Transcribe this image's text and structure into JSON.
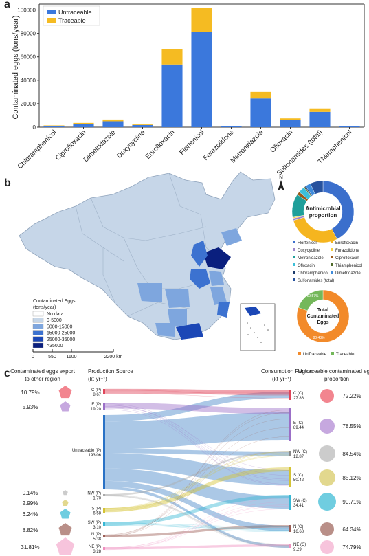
{
  "panels": {
    "a": "a",
    "b": "b",
    "c": "c"
  },
  "chart_data": [
    {
      "type": "bar",
      "panel": "a",
      "ylabel": "Contaminated eggs (tons/year)",
      "ylim": [
        0,
        105000
      ],
      "yticks": [
        "0",
        "20000",
        "40000",
        "60000",
        "80000",
        "100000"
      ],
      "ytick_values": [
        0,
        20000,
        40000,
        60000,
        80000,
        100000
      ],
      "categories": [
        "Chloramphenicol",
        "Ciprofloxacin",
        "Dimetridazole",
        "Doxycycline",
        "Enrofloxacin",
        "Florfenicol",
        "Furazolidone",
        "Metronidazole",
        "Ofloxacin",
        "Sulfonamides (total)",
        "Thiamphenicol"
      ],
      "stacked": true,
      "series": [
        {
          "name": "Untraceable",
          "color": "#3b78dc",
          "values": [
            1200,
            2800,
            5000,
            1800,
            53500,
            81000,
            900,
            24500,
            6000,
            13000,
            800
          ]
        },
        {
          "name": "Traceable",
          "color": "#f5bb22",
          "values": [
            300,
            800,
            1500,
            500,
            13000,
            20500,
            200,
            5500,
            1500,
            3000,
            200
          ]
        }
      ],
      "legend_position": "top-left"
    },
    {
      "type": "map",
      "panel": "b",
      "legend_title": "Contaminated Eggs (tons/year)",
      "legend": [
        {
          "label": "No data",
          "color": "#ffffff"
        },
        {
          "label": "0-5000",
          "color": "#c6d6e8"
        },
        {
          "label": "5000-15000",
          "color": "#7ea6de"
        },
        {
          "label": "15000-25000",
          "color": "#3c72d0"
        },
        {
          "label": "25000-35000",
          "color": "#1b47b6"
        },
        {
          "label": ">35000",
          "color": "#0a1f7e"
        }
      ],
      "scale_labels": [
        "0",
        "550",
        "1100",
        "2200 km"
      ],
      "north_label": "N"
    },
    {
      "type": "pie",
      "panel": "b",
      "title": "Antimicrobial proportion",
      "legend_position": "bottom",
      "slices": [
        {
          "name": "Florfenicol",
          "color": "#3b6fcc",
          "value": 38
        },
        {
          "name": "Enrofloxacin",
          "color": "#f5b51f",
          "value": 25
        },
        {
          "name": "Doxycycline",
          "color": "#9e86c9",
          "value": 1
        },
        {
          "name": "Furazolidone",
          "color": "#f4cf44",
          "value": 0.5
        },
        {
          "name": "Metronidazole",
          "color": "#1f9f9a",
          "value": 11
        },
        {
          "name": "Ciprofloxacin",
          "color": "#9a5a1a",
          "value": 1.5
        },
        {
          "name": "Ofloxacin",
          "color": "#3cbfd9",
          "value": 3
        },
        {
          "name": "Thiamphenicol",
          "color": "#4f6a2a",
          "value": 0.5
        },
        {
          "name": "Chloramphenico",
          "color": "#1b3a6b",
          "value": 0.5
        },
        {
          "name": "Dimetridazole",
          "color": "#3f8cdc",
          "value": 2.5
        },
        {
          "name": "Sulfonamides (total)",
          "color": "#27529e",
          "value": 6
        }
      ]
    },
    {
      "type": "pie",
      "panel": "b",
      "title": "Total Contaminated Eggs",
      "slices": [
        {
          "name": "UnTraceable",
          "label": "80.43%",
          "color": "#f28a2a",
          "value": 80.43
        },
        {
          "name": "Traceable",
          "label": "19.57%",
          "color": "#74b85a",
          "value": 19.57
        }
      ]
    },
    {
      "type": "sankey",
      "panel": "c",
      "left_header_1": "Contaminated eggs export to other region",
      "left_header_2": "Production Source (kt·yr⁻¹)",
      "right_header_1": "Consumption Region (kt·yr⁻¹)",
      "right_header_2": "Untraceable contaminated eggs proportion",
      "sources": [
        {
          "name": "C (P)",
          "value": "8.67",
          "export": "10.79%",
          "color": "#e0455a",
          "shape_color": "#f2858f"
        },
        {
          "name": "E (P)",
          "value": "19.20",
          "export": "5.93%",
          "color": "#9b6fc7",
          "shape_color": "#c6a8df"
        },
        {
          "name": "Untraceable (P)",
          "value": "193.06",
          "export": "",
          "color": "#2a72c6",
          "shape_color": ""
        },
        {
          "name": "NW (P)",
          "value": "1.70",
          "export": "0.14%",
          "color": "#aaaaaa",
          "shape_color": "#cccccc"
        },
        {
          "name": "S (P)",
          "value": "6.58",
          "export": "2.99%",
          "color": "#d4c334",
          "shape_color": "#e2d88e"
        },
        {
          "name": "SW (P)",
          "value": "3.10",
          "export": "6.24%",
          "color": "#37b7d4",
          "shape_color": "#6fcde0"
        },
        {
          "name": "N (P)",
          "value": "5.38",
          "export": "8.82%",
          "color": "#9b5e55",
          "shape_color": "#b98f88"
        },
        {
          "name": "NE (P)",
          "value": "3.28",
          "export": "31.81%",
          "color": "#ef8fbf",
          "shape_color": "#f7c4dc"
        }
      ],
      "targets": [
        {
          "name": "C (C)",
          "value": "27.86",
          "proportion": "72.22%",
          "color": "#e0455a",
          "circle_color": "#f2858f"
        },
        {
          "name": "E (C)",
          "value": "89.44",
          "proportion": "78.55%",
          "color": "#9b6fc7",
          "circle_color": "#c6a8df"
        },
        {
          "name": "NW (C)",
          "value": "12.87",
          "proportion": "84.54%",
          "color": "#888888",
          "circle_color": "#cccccc"
        },
        {
          "name": "S (C)",
          "value": "50.42",
          "proportion": "85.12%",
          "color": "#d4c334",
          "circle_color": "#e2d88e"
        },
        {
          "name": "SW (C)",
          "value": "34.41",
          "proportion": "90.71%",
          "color": "#37b7d4",
          "circle_color": "#6fcde0"
        },
        {
          "name": "N (C)",
          "value": "16.68",
          "proportion": "64.34%",
          "color": "#9b5e55",
          "circle_color": "#b98f88"
        },
        {
          "name": "NE (C)",
          "value": "9.29",
          "proportion": "74.79%",
          "color": "#ef8fbf",
          "circle_color": "#f7c4dc"
        }
      ]
    }
  ]
}
